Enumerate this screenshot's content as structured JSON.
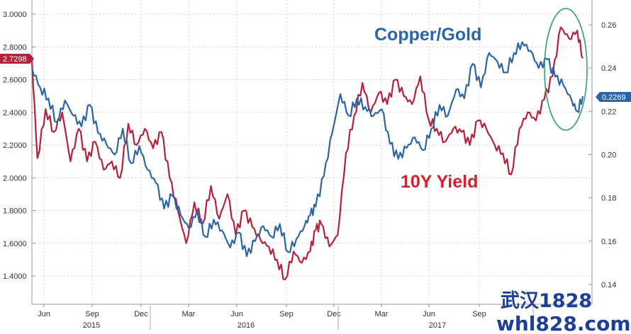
{
  "chart_data": {
    "type": "line",
    "left_axis": {
      "ticks": [
        "3.0000",
        "2.8000",
        "2.6000",
        "2.4000",
        "2.2000",
        "2.0000",
        "1.8000",
        "1.6000",
        "1.4000"
      ],
      "range": [
        1.32,
        3.05
      ]
    },
    "right_axis": {
      "ticks": [
        "0.26",
        "0.24",
        "0.22",
        "0.20",
        "0.18",
        "0.16",
        "0.14"
      ],
      "range": [
        0.14,
        0.27
      ]
    },
    "x_ticks": [
      "Jun",
      "Sep",
      "Dec",
      "Mar",
      "Jun",
      "Sep",
      "Dec",
      "Mar",
      "Jun",
      "Sep"
    ],
    "years": [
      "2015",
      "2016",
      "2017"
    ],
    "series": [
      {
        "name": "10Y Yield",
        "axis": "left",
        "color": "#b5203b",
        "last_value_label": "2.7298",
        "x": [
          0,
          0.01,
          0.025,
          0.04,
          0.055,
          0.07,
          0.085,
          0.1,
          0.115,
          0.13,
          0.145,
          0.16,
          0.175,
          0.19,
          0.205,
          0.22,
          0.235,
          0.25,
          0.265,
          0.28,
          0.295,
          0.31,
          0.325,
          0.34,
          0.355,
          0.37,
          0.385,
          0.4,
          0.415,
          0.43,
          0.445,
          0.46,
          0.475,
          0.49,
          0.505,
          0.515,
          0.525,
          0.54,
          0.555,
          0.57,
          0.585,
          0.6,
          0.615,
          0.63,
          0.645,
          0.66,
          0.675,
          0.69,
          0.705,
          0.72,
          0.735,
          0.75,
          0.765,
          0.78,
          0.795,
          0.81,
          0.825,
          0.84,
          0.855,
          0.87,
          0.885,
          0.9,
          0.915,
          0.93,
          0.945,
          0.96,
          0.975,
          0.99,
          1.0
        ],
        "y": [
          2.72,
          2.12,
          2.42,
          2.28,
          2.4,
          2.1,
          2.3,
          2.1,
          2.22,
          2.05,
          2.1,
          2.0,
          2.33,
          2.2,
          2.3,
          2.18,
          2.28,
          2.0,
          1.8,
          1.6,
          1.85,
          1.72,
          1.95,
          1.75,
          1.9,
          1.65,
          1.8,
          1.7,
          1.62,
          1.58,
          1.5,
          1.38,
          1.55,
          1.48,
          1.55,
          1.68,
          1.72,
          1.58,
          1.65,
          2.15,
          2.38,
          2.58,
          2.4,
          2.52,
          2.45,
          2.6,
          2.5,
          2.45,
          2.62,
          2.36,
          2.3,
          2.22,
          2.3,
          2.28,
          2.2,
          2.35,
          2.3,
          2.2,
          2.15,
          2.02,
          2.3,
          2.4,
          2.35,
          2.48,
          2.62,
          2.92,
          2.85,
          2.9,
          2.73
        ]
      },
      {
        "name": "Copper/Gold",
        "axis": "right",
        "color": "#2b65a6",
        "last_value_label": "0.2269",
        "x": [
          0,
          0.015,
          0.03,
          0.045,
          0.06,
          0.075,
          0.09,
          0.105,
          0.12,
          0.135,
          0.15,
          0.165,
          0.18,
          0.195,
          0.21,
          0.225,
          0.24,
          0.255,
          0.27,
          0.285,
          0.3,
          0.315,
          0.33,
          0.345,
          0.36,
          0.375,
          0.39,
          0.405,
          0.42,
          0.435,
          0.45,
          0.465,
          0.48,
          0.495,
          0.505,
          0.515,
          0.53,
          0.545,
          0.56,
          0.575,
          0.59,
          0.605,
          0.62,
          0.635,
          0.65,
          0.665,
          0.68,
          0.695,
          0.71,
          0.725,
          0.74,
          0.755,
          0.77,
          0.785,
          0.8,
          0.815,
          0.83,
          0.845,
          0.86,
          0.875,
          0.89,
          0.905,
          0.92,
          0.935,
          0.95,
          0.965,
          0.98,
          0.99,
          1.0
        ],
        "y": [
          0.24,
          0.231,
          0.226,
          0.215,
          0.225,
          0.218,
          0.213,
          0.223,
          0.21,
          0.205,
          0.2,
          0.212,
          0.196,
          0.204,
          0.193,
          0.187,
          0.175,
          0.181,
          0.172,
          0.166,
          0.174,
          0.162,
          0.17,
          0.165,
          0.157,
          0.164,
          0.153,
          0.16,
          0.167,
          0.162,
          0.168,
          0.155,
          0.161,
          0.167,
          0.172,
          0.176,
          0.19,
          0.21,
          0.228,
          0.218,
          0.226,
          0.222,
          0.218,
          0.221,
          0.205,
          0.198,
          0.203,
          0.208,
          0.202,
          0.212,
          0.223,
          0.218,
          0.23,
          0.226,
          0.242,
          0.231,
          0.247,
          0.243,
          0.238,
          0.247,
          0.252,
          0.248,
          0.24,
          0.244,
          0.236,
          0.232,
          0.225,
          0.22,
          0.227
        ]
      }
    ],
    "annotations": [
      {
        "text": "Copper/Gold",
        "color": "#2b65a6"
      },
      {
        "text": "10Y Yield",
        "color": "#d2202e"
      }
    ],
    "highlight_ellipse": {
      "color": "#2f9e79"
    },
    "grid": true
  },
  "watermark": {
    "line1": "武汉1828",
    "line2": "whl828.com",
    "color": "#1d3f97"
  }
}
